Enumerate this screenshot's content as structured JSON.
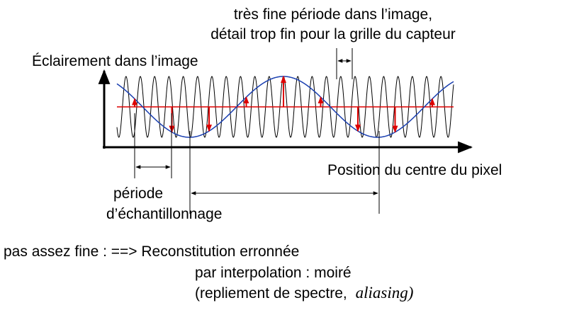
{
  "annotation_top": [
    "très fine période dans l’image,",
    "détail trop fin pour la grille du  capteur"
  ],
  "y_axis_label": "Éclairement dans l’image",
  "x_axis_label": "Position du centre du pixel",
  "sampling_label": [
    "période",
    "d’échantillonnage"
  ],
  "caption": [
    "pas assez fine : ==> Reconstitution erronnée",
    "par interpolation : moiré",
    "(repliement de spectre, "
  ],
  "caption_italic": "aliasing)"
}
